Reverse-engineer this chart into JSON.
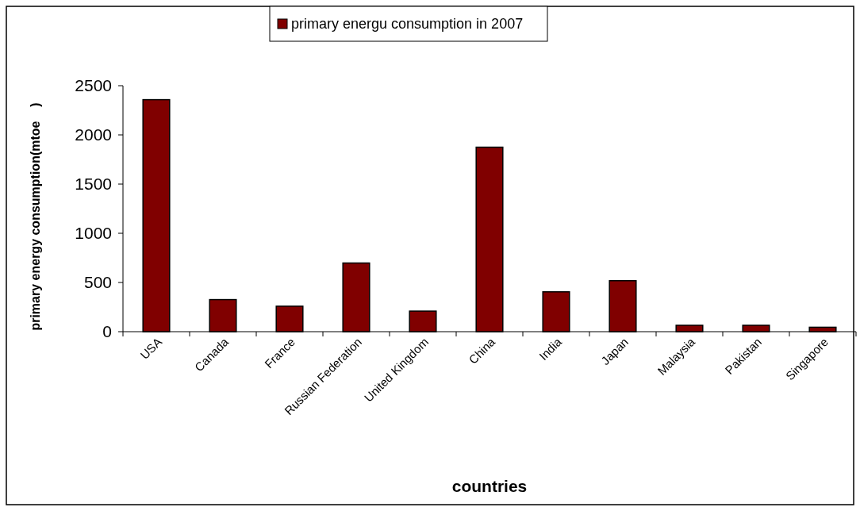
{
  "chart_data": {
    "type": "bar",
    "categories": [
      "USA",
      "Canada",
      "France",
      "Russian Federation",
      "United Kingdom",
      "China",
      "India",
      "Japan",
      "Malaysia",
      "Pakistan",
      "Singapore"
    ],
    "series": [
      {
        "name": "primary energu consumption in 2007",
        "color": "#800000",
        "values": [
          2358,
          326,
          259,
          698,
          209,
          1875,
          405,
          518,
          65,
          65,
          45
        ]
      }
    ],
    "xlabel": "countries",
    "ylabel": "primary energy consumption(mtoe    )",
    "ylim": [
      0,
      2500
    ],
    "yticks": [
      0,
      500,
      1000,
      1500,
      2000,
      2500
    ],
    "grid": false,
    "legend": "top"
  }
}
